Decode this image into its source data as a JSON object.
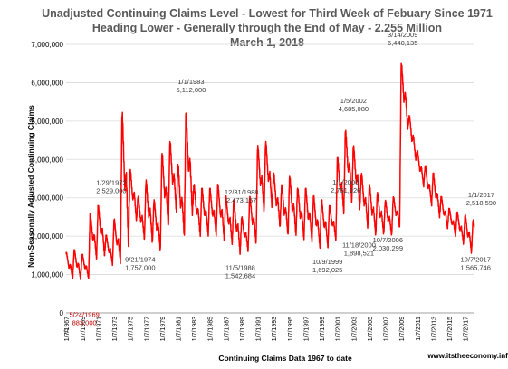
{
  "chart_data": {
    "type": "line",
    "title": [
      "Unadjusted Continuing Claims Level - Lowest for Third Week of Febuary Since 1971",
      "Heading Lower - Generally through the End of May - 2.255 Million",
      "March 1, 2018"
    ],
    "ylabel": "Non-Seasonally Adjusted Continuing Claims",
    "xlabel": "Continuing Claims Data 1967 to date",
    "source": "www.itstheeconomy.info",
    "ylim": [
      0,
      7000000
    ],
    "yticks": [
      "0",
      "1,000,000",
      "2,000,000",
      "3,000,000",
      "4,000,000",
      "5,000,000",
      "6,000,000",
      "7,000,000"
    ],
    "xlim": [
      1967.0,
      2018.2
    ],
    "xticks": [
      "1/7/1967",
      "1/7/1969",
      "1/7/1971",
      "1/7/1973",
      "1/7/1975",
      "1/7/1977",
      "1/7/1979",
      "1/7/1981",
      "1/7/1983",
      "1/7/1985",
      "1/7/1987",
      "1/7/1989",
      "1/7/1991",
      "1/7/1993",
      "1/7/1995",
      "1/7/1997",
      "1/7/1999",
      "1/7/2001",
      "1/7/2003",
      "1/7/2005",
      "1/7/2007",
      "1/7/2009",
      "1/7/2011",
      "1/7/2013",
      "1/7/2015",
      "1/7/2017"
    ],
    "grid": true,
    "line_color": "#ff0000",
    "annual_peaks": [
      1550000,
      1620000,
      1500000,
      2529000,
      2750000,
      2000000,
      2400000,
      5100000,
      3700000,
      3000000,
      3400000,
      2900000,
      4100000,
      4400000,
      3800000,
      5112000,
      3300000,
      3200000,
      3200000,
      3300000,
      3000000,
      2900000,
      2473157,
      3000000,
      4300000,
      4400000,
      3600000,
      3300000,
      3500000,
      3200000,
      3200000,
      3000000,
      2900000,
      2761926,
      4000000,
      4685080,
      4300000,
      3600000,
      3300000,
      3100000,
      2900000,
      3000000,
      6440135,
      5100000,
      4200000,
      3800000,
      3600000,
      3000000,
      2700000,
      2600000,
      2518590,
      2400000
    ],
    "annual_troughs": [
      880000,
      870000,
      883000,
      1400000,
      1500000,
      1250000,
      1300000,
      1757000,
      2400000,
      1900000,
      1800000,
      1600000,
      2200000,
      2600000,
      1950000,
      2600000,
      2000000,
      2000000,
      2000000,
      1900000,
      1800000,
      1542684,
      1600000,
      1800000,
      2600000,
      2700000,
      2200000,
      2000000,
      2000000,
      1900000,
      1850000,
      1692025,
      1700000,
      1898521,
      2600000,
      2900000,
      2700000,
      2200000,
      2000000,
      2030299,
      2000000,
      2200000,
      4800000,
      4000000,
      3300000,
      2800000,
      2500000,
      2200000,
      2000000,
      1800000,
      1565746,
      1600000
    ],
    "annotations": [
      {
        "date": "5/24/1969",
        "value": "883,000",
        "x": 1969.4,
        "y": 883000,
        "color": "red",
        "extra": "0"
      },
      {
        "date": "1/29/1972",
        "value": "2,529,000",
        "x": 1972.1,
        "y": 2529000
      },
      {
        "date": "9/21/1974",
        "value": "1,757,000",
        "x": 1974.7,
        "y": 1757000
      },
      {
        "date": "1/1/1983",
        "value": "5,112,000",
        "x": 1983.0,
        "y": 5112000
      },
      {
        "date": "12/31/1988",
        "value": "2,473,157",
        "x": 1988.99,
        "y": 2473157
      },
      {
        "date": "11/5/1988",
        "value": "1,542,684",
        "x": 1988.85,
        "y": 1542684
      },
      {
        "date": "1/1/2000",
        "value": "2,761,926",
        "x": 2000.0,
        "y": 2761926
      },
      {
        "date": "10/9/1999",
        "value": "1,692,025",
        "x": 1999.77,
        "y": 1692025
      },
      {
        "date": "1/5/2002",
        "value": "4,685,080",
        "x": 2002.01,
        "y": 4685080
      },
      {
        "date": "11/18/2000",
        "value": "1,898,521",
        "x": 2000.88,
        "y": 1898521
      },
      {
        "date": "10/7/2006",
        "value": "2,030,299",
        "x": 2006.77,
        "y": 2030299
      },
      {
        "date": "3/14/2009",
        "value": "6,440,135",
        "x": 2009.2,
        "y": 6440135
      },
      {
        "date": "1/1/2017",
        "value": "2,518,590",
        "x": 2017.0,
        "y": 2518590
      },
      {
        "date": "10/7/2017",
        "value": "1,565,746",
        "x": 2017.77,
        "y": 1565746
      }
    ]
  }
}
